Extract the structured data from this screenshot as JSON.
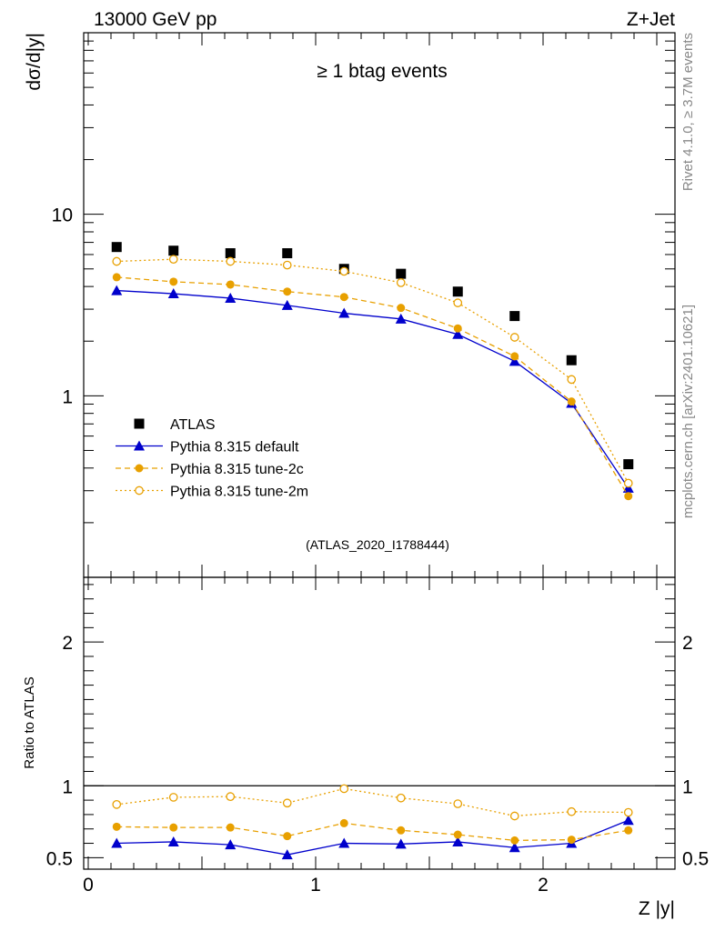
{
  "header": {
    "left": "13000 GeV pp",
    "right": "Z+Jet",
    "side_top": "Rivet 4.1.0, ≥ 3.7M events",
    "side_bottom": "mcplots.cern.ch [arXiv:2401.10621]"
  },
  "chart_data": {
    "type": "scatter",
    "title": "≥ 1 btag events",
    "analysis_label": "(ATLAS_2020_I1788444)",
    "xlabel": "Z |y|",
    "ylabel": "dσ/d|y|",
    "ratio_ylabel": "Ratio to ATLAS",
    "xlim": [
      -0.02,
      2.58
    ],
    "ylim": [
      0.1,
      100
    ],
    "yscale": "log",
    "ratio_ylim": [
      0.42,
      2.45
    ],
    "x_ticks": [
      "0",
      "1",
      "2"
    ],
    "y_ticks": [
      "1",
      "10"
    ],
    "ratio_ticks": [
      "0.5",
      "1",
      "2"
    ],
    "x": [
      0.125,
      0.375,
      0.625,
      0.875,
      1.125,
      1.375,
      1.625,
      1.875,
      2.125,
      2.375
    ],
    "series": [
      {
        "name": "ATLAS",
        "style": "data",
        "color": "#000000",
        "values": [
          6.6,
          6.3,
          6.1,
          6.1,
          5.0,
          4.7,
          3.75,
          2.75,
          1.57,
          0.42
        ]
      },
      {
        "name": "Pythia 8.315 default",
        "style": "triangle",
        "color": "#0000cc",
        "values": [
          3.8,
          3.65,
          3.45,
          3.15,
          2.85,
          2.65,
          2.18,
          1.55,
          0.91,
          0.31
        ],
        "ratio": [
          0.6,
          0.61,
          0.59,
          0.52,
          0.6,
          0.595,
          0.61,
          0.57,
          0.6,
          0.76
        ]
      },
      {
        "name": "Pythia 8.315 tune-2c",
        "style": "dot",
        "color": "#e8a000",
        "values": [
          4.5,
          4.25,
          4.1,
          3.75,
          3.5,
          3.05,
          2.35,
          1.65,
          0.93,
          0.28
        ],
        "ratio": [
          0.715,
          0.71,
          0.71,
          0.65,
          0.74,
          0.69,
          0.66,
          0.62,
          0.625,
          0.69
        ]
      },
      {
        "name": "Pythia 8.315 tune-2m",
        "style": "circle",
        "color": "#e8a000",
        "values": [
          5.5,
          5.65,
          5.5,
          5.25,
          4.85,
          4.2,
          3.25,
          2.1,
          1.23,
          0.33
        ],
        "ratio": [
          0.87,
          0.92,
          0.925,
          0.88,
          0.98,
          0.915,
          0.875,
          0.79,
          0.82,
          0.815
        ]
      }
    ]
  }
}
